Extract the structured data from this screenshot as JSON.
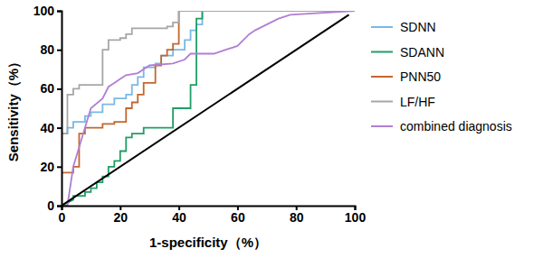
{
  "chart_data": {
    "type": "line",
    "x_label": "1-specificity（%）",
    "y_label": "Sensitivity（%）",
    "xlim": [
      0,
      100
    ],
    "ylim": [
      0,
      100
    ],
    "xticks": [
      0,
      20,
      40,
      60,
      80,
      100
    ],
    "yticks": [
      0,
      20,
      40,
      60,
      80,
      100
    ],
    "grid": false,
    "legend": "right",
    "series": [
      {
        "name": "SDNN",
        "color": "#79b8e6",
        "x": [
          0,
          0,
          2,
          2,
          4,
          4,
          8,
          8,
          10,
          10,
          14,
          14,
          18,
          18,
          22,
          22,
          24,
          24,
          26,
          26,
          28,
          28,
          32,
          32,
          34,
          34,
          38,
          38,
          42,
          42,
          44,
          44,
          46,
          46,
          48,
          48,
          100
        ],
        "values": [
          0,
          37,
          37,
          40,
          40,
          43,
          43,
          46,
          46,
          48,
          48,
          52,
          52,
          55,
          55,
          57,
          57,
          62,
          62,
          66,
          66,
          71,
          71,
          73,
          73,
          77,
          77,
          80,
          80,
          85,
          85,
          90,
          90,
          93,
          93,
          100,
          100
        ]
      },
      {
        "name": "SDANN",
        "color": "#1f9e66",
        "x": [
          0,
          4,
          4,
          8,
          8,
          10,
          10,
          12,
          12,
          14,
          14,
          16,
          16,
          18,
          18,
          20,
          20,
          22,
          22,
          24,
          24,
          28,
          28,
          36,
          36,
          38,
          38,
          44,
          44,
          46,
          46,
          48,
          48,
          100
        ],
        "values": [
          0,
          3,
          5,
          5,
          7,
          7,
          9,
          9,
          12,
          12,
          15,
          15,
          20,
          20,
          23,
          23,
          28,
          28,
          35,
          35,
          37,
          37,
          40,
          40,
          40,
          40,
          50,
          50,
          62,
          62,
          96,
          96,
          100,
          100
        ]
      },
      {
        "name": "PNN50",
        "color": "#c4662f",
        "x": [
          0,
          0,
          4,
          4,
          6,
          6,
          8,
          8,
          14,
          14,
          18,
          18,
          22,
          22,
          24,
          24,
          26,
          26,
          28,
          28,
          32,
          32,
          34,
          34,
          36,
          36,
          38,
          38,
          40,
          40,
          100
        ],
        "values": [
          0,
          17,
          17,
          20,
          20,
          37,
          37,
          40,
          40,
          42,
          42,
          43,
          43,
          50,
          50,
          53,
          53,
          57,
          57,
          63,
          63,
          72,
          72,
          77,
          77,
          80,
          80,
          83,
          83,
          100,
          100
        ]
      },
      {
        "name": "LF/HF",
        "color": "#a6a6a6",
        "x": [
          0,
          0,
          2,
          2,
          4,
          4,
          6,
          6,
          14,
          14,
          16,
          16,
          20,
          20,
          22,
          22,
          24,
          24,
          36,
          36,
          38,
          38,
          40,
          40,
          100
        ],
        "values": [
          0,
          37,
          37,
          57,
          57,
          60,
          60,
          62,
          62,
          80,
          80,
          85,
          85,
          86,
          86,
          88,
          88,
          91,
          91,
          92,
          92,
          94,
          94,
          100,
          100
        ]
      },
      {
        "name": "combined diagnosis",
        "color": "#b07fd3",
        "x": [
          0,
          2,
          2,
          4,
          4,
          6,
          6,
          8,
          8,
          10,
          10,
          14,
          14,
          16,
          16,
          18,
          18,
          20,
          20,
          22,
          22,
          26,
          26,
          28,
          28,
          30,
          30,
          38,
          38,
          42,
          42,
          44,
          44,
          52,
          52,
          56,
          56,
          60,
          60,
          62,
          62,
          64,
          64,
          66,
          66,
          70,
          70,
          74,
          74,
          78,
          78,
          100
        ],
        "values": [
          0,
          0,
          0,
          20,
          20,
          30,
          30,
          40,
          40,
          50,
          50,
          55,
          55,
          61,
          61,
          63,
          63,
          65,
          65,
          67,
          67,
          68,
          68,
          70,
          70,
          72,
          72,
          73,
          73,
          75,
          75,
          78,
          78,
          78,
          78,
          80,
          80,
          82,
          82,
          85,
          85,
          88,
          88,
          90,
          90,
          93,
          93,
          96,
          96,
          98,
          98,
          100
        ]
      },
      {
        "color": "#000000",
        "x": [
          0,
          98
        ],
        "values": [
          0,
          98
        ]
      }
    ]
  }
}
